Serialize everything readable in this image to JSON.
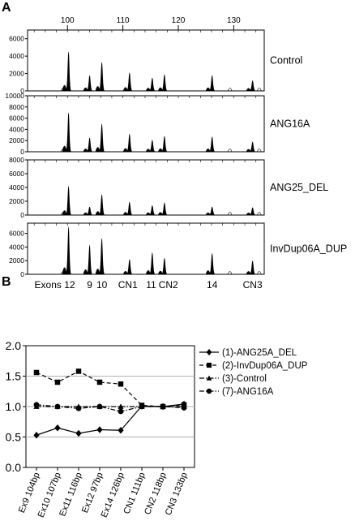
{
  "panel_a": {
    "label": "A",
    "x_ticks": [
      100,
      110,
      120,
      130
    ],
    "panels": [
      {
        "name": "Control",
        "y_ticks": [
          0,
          2000,
          4000,
          6000
        ],
        "peaks": [
          [
            100.2,
            4500
          ],
          [
            104,
            1800
          ],
          [
            106.2,
            3300
          ],
          [
            111.2,
            2100
          ],
          [
            115.3,
            1500
          ],
          [
            117.5,
            1900
          ],
          [
            126.1,
            1800
          ],
          [
            133.4,
            1200
          ]
        ]
      },
      {
        "name": "ANG16A",
        "y_ticks": [
          0,
          2000,
          4000,
          6000,
          8000,
          10000
        ],
        "peaks": [
          [
            100.2,
            7000
          ],
          [
            104,
            2500
          ],
          [
            106.2,
            5000
          ],
          [
            111.2,
            3200
          ],
          [
            115.3,
            2100
          ],
          [
            117.5,
            2800
          ],
          [
            126.1,
            2700
          ],
          [
            133.4,
            1800
          ]
        ]
      },
      {
        "name": "ANG25_DEL",
        "y_ticks": [
          0,
          2000,
          4000,
          6000,
          8000
        ],
        "peaks": [
          [
            100.2,
            4200
          ],
          [
            104,
            1200
          ],
          [
            106.2,
            3000
          ],
          [
            111.2,
            1900
          ],
          [
            115.3,
            1400
          ],
          [
            117.5,
            1800
          ],
          [
            126.1,
            1200
          ],
          [
            133.4,
            1100
          ]
        ]
      },
      {
        "name": "InvDup06A_DUP",
        "y_ticks": [
          0,
          2000,
          4000,
          6000
        ],
        "peaks": [
          [
            100.2,
            7000
          ],
          [
            104,
            4300
          ],
          [
            106.2,
            5300
          ],
          [
            111.2,
            2200
          ],
          [
            115.3,
            3200
          ],
          [
            117.5,
            2400
          ],
          [
            126.1,
            3100
          ],
          [
            133.4,
            2000
          ]
        ]
      }
    ],
    "exon_labels": [
      {
        "text": "Exons 12",
        "x": 100.2
      },
      {
        "text": "9",
        "x": 104
      },
      {
        "text": "10",
        "x": 106.2
      },
      {
        "text": "CN1",
        "x": 110.9
      },
      {
        "text": "11",
        "x": 115.1
      },
      {
        "text": "CN2",
        "x": 118.2
      },
      {
        "text": "14",
        "x": 126.1
      },
      {
        "text": "CN3",
        "x": 133.4
      }
    ]
  },
  "panel_b": {
    "label": "B",
    "chart_data": {
      "type": "line",
      "categories": [
        "Ex9 104bp",
        "Ex10 107bp",
        "Ex11 116bp",
        "Ex12 97bp",
        "Ex14 126bp",
        "CN1 111bp",
        "CN2 118bp",
        "CN3 133bp"
      ],
      "ylim": [
        0.0,
        2.0
      ],
      "y_ticks": [
        "0.0",
        "0.5",
        "1.0",
        "1.5",
        "2.0"
      ],
      "grid": true,
      "legend_position": "right",
      "series": [
        {
          "name": "(1)-ANG25A_DEL",
          "marker": "diamond",
          "dash": "solid",
          "values": [
            0.53,
            0.65,
            0.56,
            0.62,
            0.61,
            1.01,
            1.0,
            1.04
          ]
        },
        {
          "name": "(2)-InvDup06A_DUP",
          "marker": "square",
          "dash": "dashed",
          "values": [
            1.56,
            1.4,
            1.58,
            1.4,
            1.37,
            1.02,
            1.0,
            1.03
          ]
        },
        {
          "name": "(3)-Control",
          "marker": "triangle",
          "dash": "dashdot",
          "values": [
            1.0,
            1.0,
            1.0,
            1.0,
            1.0,
            1.0,
            1.0,
            1.0
          ]
        },
        {
          "name": "(7)-ANG16A",
          "marker": "circle",
          "dash": "dashdot",
          "values": [
            1.03,
            1.0,
            0.97,
            1.0,
            0.92,
            1.0,
            1.0,
            0.98
          ]
        }
      ]
    }
  }
}
